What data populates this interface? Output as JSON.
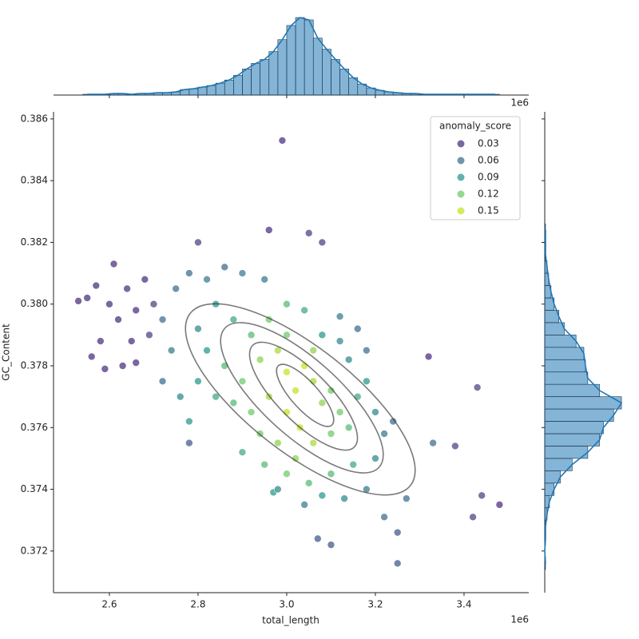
{
  "chart_data": {
    "type": "scatter",
    "x_label": "total_length",
    "y_label": "GC_Content",
    "x_offset_label": "1e6",
    "xlim": [
      2.474,
      3.546
    ],
    "ylim": [
      0.37065,
      0.38623
    ],
    "xticks": [
      2.6,
      2.8,
      {
        "value": 3.0,
        "label": "3.0"
      },
      3.2,
      3.4
    ],
    "yticks": [
      0.372,
      0.374,
      0.376,
      0.378,
      {
        "value": 0.38,
        "label": "0.380"
      },
      0.382,
      0.384,
      0.386
    ],
    "legend": {
      "title": "anomaly_score",
      "corner": "upper right",
      "entries": [
        {
          "value": 0.03,
          "color": "#472d7b"
        },
        {
          "value": 0.06,
          "color": "#3b6a8c"
        },
        {
          "value": 0.09,
          "color": "#25968a"
        },
        {
          "value": 0.12,
          "color": "#6cc965"
        },
        {
          "value": 0.15,
          "color": "#c8e020"
        }
      ]
    },
    "x": [
      2.55,
      2.57,
      2.6,
      2.62,
      2.58,
      2.64,
      2.66,
      2.61,
      2.68,
      2.56,
      2.59,
      2.63,
      2.66,
      2.69,
      2.7,
      2.65,
      2.53,
      2.99,
      2.96,
      3.05,
      3.08,
      2.8,
      3.32,
      3.43,
      3.38,
      3.42,
      3.48,
      3.44,
      3.25,
      3.1,
      3.07,
      3.25,
      2.78,
      2.97,
      3.33,
      3.27,
      3.22,
      2.72,
      2.75,
      2.78,
      2.82,
      2.86,
      2.9,
      2.95,
      2.74,
      2.72,
      2.76,
      2.78,
      2.8,
      2.84,
      2.88,
      2.92,
      2.96,
      3.0,
      3.04,
      3.08,
      3.12,
      3.16,
      3.18,
      2.86,
      2.9,
      2.94,
      2.98,
      3.0,
      3.02,
      3.04,
      3.06,
      3.08,
      3.1,
      3.12,
      3.0,
      3.03,
      2.96,
      2.92,
      2.88,
      2.84,
      2.94,
      2.98,
      3.02,
      3.06,
      3.1,
      3.14,
      3.16,
      3.18,
      3.2,
      3.22,
      3.24,
      3.2,
      3.15,
      3.1,
      3.05,
      3.0,
      2.95,
      2.9,
      3.08,
      3.13,
      3.18,
      3.04,
      2.98,
      3.0,
      3.06,
      2.82,
      2.8,
      3.14,
      3.12
    ],
    "y": [
      0.3802,
      0.3806,
      0.38,
      0.3795,
      0.3788,
      0.3805,
      0.3798,
      0.3813,
      0.3808,
      0.3783,
      0.3779,
      0.378,
      0.3781,
      0.379,
      0.38,
      0.3788,
      0.3801,
      0.3853,
      0.3824,
      0.3823,
      0.382,
      0.382,
      0.3783,
      0.3773,
      0.3754,
      0.3731,
      0.3735,
      0.3738,
      0.3716,
      0.3722,
      0.3724,
      0.3726,
      0.3755,
      0.3739,
      0.3755,
      0.3737,
      0.3731,
      0.3795,
      0.3805,
      0.381,
      0.3808,
      0.3812,
      0.381,
      0.3808,
      0.3785,
      0.3775,
      0.377,
      0.3762,
      0.3775,
      0.38,
      0.3795,
      0.379,
      0.3795,
      0.38,
      0.3798,
      0.379,
      0.3796,
      0.3792,
      0.3785,
      0.378,
      0.3775,
      0.3782,
      0.3785,
      0.3778,
      0.3772,
      0.378,
      0.3775,
      0.3768,
      0.3772,
      0.3765,
      0.3765,
      0.376,
      0.377,
      0.3765,
      0.3768,
      0.377,
      0.3758,
      0.3755,
      0.375,
      0.3755,
      0.3758,
      0.376,
      0.377,
      0.3775,
      0.3765,
      0.3758,
      0.3762,
      0.375,
      0.3748,
      0.3745,
      0.3742,
      0.3745,
      0.3748,
      0.3752,
      0.3738,
      0.3737,
      0.374,
      0.3735,
      0.374,
      0.379,
      0.3785,
      0.3785,
      0.3792,
      0.3782,
      0.3788
    ],
    "hue": [
      0.02,
      0.02,
      0.02,
      0.03,
      0.02,
      0.02,
      0.03,
      0.02,
      0.03,
      0.02,
      0.03,
      0.03,
      0.03,
      0.04,
      0.04,
      0.03,
      0.02,
      0.03,
      0.03,
      0.04,
      0.04,
      0.04,
      0.03,
      0.04,
      0.04,
      0.04,
      0.02,
      0.04,
      0.05,
      0.05,
      0.05,
      0.05,
      0.05,
      0.09,
      0.06,
      0.06,
      0.06,
      0.06,
      0.06,
      0.06,
      0.07,
      0.06,
      0.07,
      0.07,
      0.07,
      0.06,
      0.08,
      0.09,
      0.09,
      0.09,
      0.1,
      0.11,
      0.12,
      0.11,
      0.1,
      0.09,
      0.07,
      0.06,
      0.06,
      0.11,
      0.12,
      0.13,
      0.14,
      0.15,
      0.16,
      0.15,
      0.14,
      0.13,
      0.12,
      0.12,
      0.16,
      0.15,
      0.14,
      0.12,
      0.11,
      0.1,
      0.12,
      0.13,
      0.13,
      0.14,
      0.12,
      0.11,
      0.1,
      0.09,
      0.08,
      0.07,
      0.06,
      0.08,
      0.1,
      0.11,
      0.11,
      0.12,
      0.11,
      0.1,
      0.09,
      0.08,
      0.07,
      0.07,
      0.08,
      0.12,
      0.13,
      0.09,
      0.08,
      0.08,
      0.08
    ],
    "marginal_x": {
      "type": "histogram",
      "color": "#1f77b4",
      "count_lim": [
        0,
        100
      ],
      "bins": [
        2.54,
        2.56,
        2.58,
        2.6,
        2.62,
        2.64,
        2.66,
        2.68,
        2.7,
        2.72,
        2.74,
        2.76,
        2.78,
        2.8,
        2.82,
        2.84,
        2.86,
        2.88,
        2.9,
        2.92,
        2.94,
        2.96,
        2.98,
        3.0,
        3.02,
        3.04,
        3.06,
        3.08,
        3.1,
        3.12,
        3.14,
        3.16,
        3.18,
        3.2,
        3.22,
        3.24,
        3.26,
        3.28,
        3.3,
        3.32,
        3.34,
        3.36,
        3.38,
        3.4,
        3.42,
        3.44,
        3.46,
        3.48
      ],
      "counts": [
        1,
        1,
        1,
        2,
        2,
        1,
        2,
        2,
        3,
        3,
        4,
        7,
        8,
        10,
        12,
        15,
        19,
        25,
        33,
        40,
        45,
        55,
        70,
        88,
        98,
        95,
        72,
        58,
        45,
        33,
        22,
        14,
        9,
        6,
        4,
        3,
        2,
        2,
        1,
        1,
        1,
        1,
        1,
        1,
        1,
        1,
        1
      ]
    },
    "marginal_y": {
      "type": "histogram",
      "color": "#1f77b4",
      "count_lim": [
        0,
        100
      ],
      "bins": [
        0.3714,
        0.3718,
        0.3722,
        0.3726,
        0.373,
        0.3734,
        0.3738,
        0.3742,
        0.3746,
        0.375,
        0.3754,
        0.3758,
        0.3762,
        0.3766,
        0.377,
        0.3774,
        0.3778,
        0.3782,
        0.3786,
        0.379,
        0.3794,
        0.3798,
        0.3802,
        0.3806,
        0.381,
        0.3814,
        0.3818,
        0.3822,
        0.3826
      ],
      "counts": [
        1,
        0,
        1,
        1,
        3,
        6,
        12,
        20,
        35,
        55,
        70,
        75,
        88,
        98,
        70,
        55,
        52,
        50,
        40,
        25,
        18,
        12,
        8,
        5,
        3,
        1,
        1,
        1
      ]
    }
  }
}
